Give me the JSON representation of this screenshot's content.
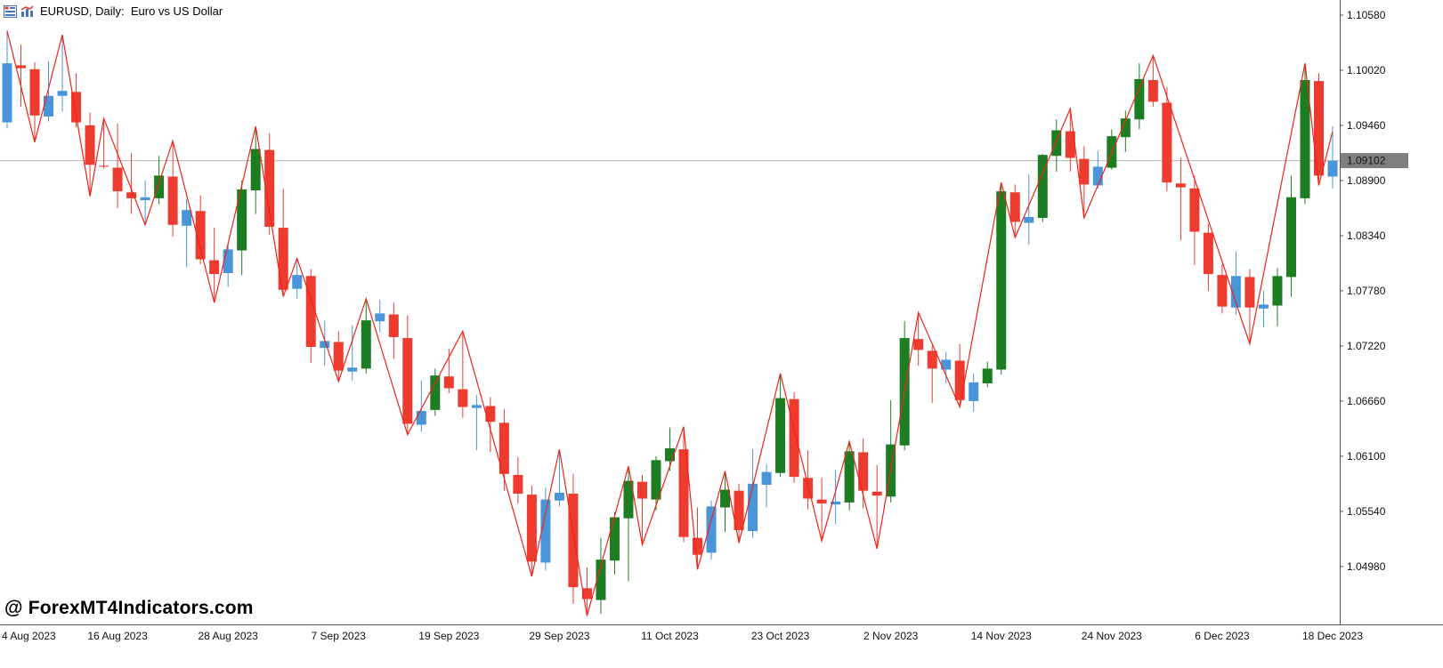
{
  "header": {
    "title": "EURUSD, Daily:  Euro vs US Dollar",
    "icons": [
      "symbols-list-icon",
      "chart-shortcut-icon"
    ]
  },
  "watermark": {
    "text": "@ ForexMT4Indicators.com"
  },
  "colors": {
    "bear_red": "#ee3b2f",
    "bull_blue": "#4a94d8",
    "bull_green": "#1c7d22",
    "zigzag": "#f02419",
    "bid_line": "#b4b4b4",
    "badge_bg": "#7f7f7f",
    "badge_text": "#ffffff",
    "axis_line": "#555555",
    "axis_text": "#111111",
    "background": "#ffffff"
  },
  "chart_data": {
    "type": "candlestick",
    "symbol": "EURUSD",
    "timeframe": "Daily",
    "title": "EURUSD, Daily: Euro vs US Dollar",
    "bid": 1.09102,
    "bid_label": "1.09102",
    "grid": false,
    "ylim": [
      1.04392,
      1.10733
    ],
    "yticks": [
      "1.10580",
      "1.10020",
      "1.09460",
      "1.08900",
      "1.08340",
      "1.07780",
      "1.07220",
      "1.06660",
      "1.06100",
      "1.05540",
      "1.04980"
    ],
    "xticks": [
      {
        "i": 0,
        "label": "4 Aug 2023"
      },
      {
        "i": 8,
        "label": "16 Aug 2023"
      },
      {
        "i": 16,
        "label": "28 Aug 2023"
      },
      {
        "i": 24,
        "label": "7 Sep 2023"
      },
      {
        "i": 32,
        "label": "19 Sep 2023"
      },
      {
        "i": 40,
        "label": "29 Sep 2023"
      },
      {
        "i": 48,
        "label": "11 Oct 2023"
      },
      {
        "i": 56,
        "label": "23 Oct 2023"
      },
      {
        "i": 64,
        "label": "2 Nov 2023"
      },
      {
        "i": 72,
        "label": "14 Nov 2023"
      },
      {
        "i": 80,
        "label": "24 Nov 2023"
      },
      {
        "i": 88,
        "label": "6 Dec 2023"
      },
      {
        "i": 96,
        "label": "18 Dec 2023"
      }
    ],
    "candles": [
      [
        1.0949,
        1.1042,
        1.0943,
        1.1009,
        "b"
      ],
      [
        1.1007,
        1.1028,
        1.0965,
        1.1004,
        "r"
      ],
      [
        1.1003,
        1.101,
        1.0929,
        1.0956,
        "r"
      ],
      [
        1.0955,
        1.1011,
        1.095,
        1.0976,
        "b"
      ],
      [
        1.0976,
        1.1038,
        1.096,
        1.0981,
        "b"
      ],
      [
        1.098,
        1.0999,
        1.0944,
        1.0949,
        "r"
      ],
      [
        1.0946,
        1.0959,
        1.0874,
        1.0906,
        "r"
      ],
      [
        1.0905,
        1.0953,
        1.0902,
        1.0904,
        "r"
      ],
      [
        1.0903,
        1.0948,
        1.0862,
        1.0879,
        "r"
      ],
      [
        1.0878,
        1.0918,
        1.0856,
        1.0872,
        "r"
      ],
      [
        1.087,
        1.089,
        1.0845,
        1.0873,
        "b"
      ],
      [
        1.0872,
        1.0915,
        1.0866,
        1.0895,
        "g"
      ],
      [
        1.0894,
        1.093,
        1.0833,
        1.0845,
        "r"
      ],
      [
        1.0844,
        1.0871,
        1.0802,
        1.086,
        "b"
      ],
      [
        1.0859,
        1.0875,
        1.0805,
        1.081,
        "r"
      ],
      [
        1.0809,
        1.0842,
        1.0766,
        1.0795,
        "r"
      ],
      [
        1.0796,
        1.0827,
        1.0782,
        1.082,
        "b"
      ],
      [
        1.0819,
        1.089,
        1.0794,
        1.0881,
        "g"
      ],
      [
        1.088,
        1.0945,
        1.0856,
        1.0922,
        "g"
      ],
      [
        1.0921,
        1.0938,
        1.0835,
        1.0843,
        "r"
      ],
      [
        1.0842,
        1.0882,
        1.0772,
        1.0779,
        "r"
      ],
      [
        1.078,
        1.0811,
        1.077,
        1.0794,
        "b"
      ],
      [
        1.0793,
        1.08,
        1.0705,
        1.0721,
        "r"
      ],
      [
        1.072,
        1.0748,
        1.0702,
        1.0727,
        "b"
      ],
      [
        1.0726,
        1.0737,
        1.0686,
        1.0697,
        "r"
      ],
      [
        1.0696,
        1.0743,
        1.0687,
        1.07,
        "b"
      ],
      [
        1.0699,
        1.077,
        1.0694,
        1.0748,
        "g"
      ],
      [
        1.0747,
        1.0769,
        1.0736,
        1.0755,
        "b"
      ],
      [
        1.0754,
        1.0766,
        1.0709,
        1.0731,
        "r"
      ],
      [
        1.073,
        1.0753,
        1.0632,
        1.0643,
        "r"
      ],
      [
        1.0642,
        1.0687,
        1.0635,
        1.0656,
        "b"
      ],
      [
        1.0657,
        1.0699,
        1.0651,
        1.0692,
        "g"
      ],
      [
        1.0691,
        1.0719,
        1.0674,
        1.0679,
        "r"
      ],
      [
        1.0678,
        1.0737,
        1.0649,
        1.066,
        "r"
      ],
      [
        1.0659,
        1.0672,
        1.0616,
        1.0662,
        "b"
      ],
      [
        1.0661,
        1.067,
        1.0614,
        1.0645,
        "r"
      ],
      [
        1.0644,
        1.0658,
        1.0575,
        1.0592,
        "r"
      ],
      [
        1.0591,
        1.0609,
        1.0562,
        1.0572,
        "r"
      ],
      [
        1.0571,
        1.058,
        1.0488,
        1.0503,
        "r"
      ],
      [
        1.0502,
        1.0578,
        1.0494,
        1.0566,
        "b"
      ],
      [
        1.0565,
        1.0617,
        1.0559,
        1.0573,
        "b"
      ],
      [
        1.0572,
        1.0592,
        1.046,
        1.0477,
        "r"
      ],
      [
        1.0476,
        1.0497,
        1.0448,
        1.0465,
        "r"
      ],
      [
        1.0464,
        1.0527,
        1.045,
        1.0505,
        "g"
      ],
      [
        1.0504,
        1.0553,
        1.049,
        1.0548,
        "g"
      ],
      [
        1.0547,
        1.06,
        1.0483,
        1.0585,
        "g"
      ],
      [
        1.0584,
        1.0591,
        1.052,
        1.0567,
        "r"
      ],
      [
        1.0566,
        1.061,
        1.0555,
        1.0606,
        "g"
      ],
      [
        1.0605,
        1.0639,
        1.0595,
        1.0618,
        "g"
      ],
      [
        1.0617,
        1.064,
        1.0523,
        1.0528,
        "r"
      ],
      [
        1.0527,
        1.0558,
        1.0495,
        1.051,
        "r"
      ],
      [
        1.0512,
        1.0565,
        1.0505,
        1.0559,
        "b"
      ],
      [
        1.0558,
        1.0595,
        1.0533,
        1.0576,
        "g"
      ],
      [
        1.0575,
        1.0582,
        1.0522,
        1.0535,
        "r"
      ],
      [
        1.0534,
        1.0617,
        1.0527,
        1.0582,
        "b"
      ],
      [
        1.0581,
        1.0602,
        1.0558,
        1.0594,
        "b"
      ],
      [
        1.0593,
        1.0694,
        1.0589,
        1.0669,
        "g"
      ],
      [
        1.0668,
        1.0675,
        1.0583,
        1.0589,
        "r"
      ],
      [
        1.0588,
        1.0616,
        1.0556,
        1.0567,
        "r"
      ],
      [
        1.0566,
        1.0588,
        1.0524,
        1.0562,
        "r"
      ],
      [
        1.0561,
        1.0596,
        1.0541,
        1.0564,
        "b"
      ],
      [
        1.0563,
        1.0625,
        1.0555,
        1.0615,
        "g"
      ],
      [
        1.0614,
        1.0628,
        1.0557,
        1.0575,
        "r"
      ],
      [
        1.0574,
        1.0601,
        1.0516,
        1.057,
        "r"
      ],
      [
        1.0569,
        1.0667,
        1.0563,
        1.0622,
        "g"
      ],
      [
        1.0621,
        1.0747,
        1.0616,
        1.073,
        "g"
      ],
      [
        1.0729,
        1.0756,
        1.0702,
        1.0718,
        "r"
      ],
      [
        1.0717,
        1.0722,
        1.0664,
        1.0699,
        "r"
      ],
      [
        1.0698,
        1.0716,
        1.0684,
        1.0708,
        "b"
      ],
      [
        1.0707,
        1.0724,
        1.066,
        1.0667,
        "r"
      ],
      [
        1.0666,
        1.0694,
        1.0655,
        1.0685,
        "b"
      ],
      [
        1.0684,
        1.0706,
        1.068,
        1.0699,
        "g"
      ],
      [
        1.0698,
        1.0888,
        1.0693,
        1.0879,
        "g"
      ],
      [
        1.0878,
        1.0886,
        1.0832,
        1.0848,
        "r"
      ],
      [
        1.0847,
        1.0896,
        1.0825,
        1.0853,
        "b"
      ],
      [
        1.0852,
        1.0917,
        1.0848,
        1.0916,
        "g"
      ],
      [
        1.0915,
        1.0952,
        1.0899,
        1.0941,
        "g"
      ],
      [
        1.094,
        1.0963,
        1.0899,
        1.0913,
        "r"
      ],
      [
        1.0912,
        1.0925,
        1.0852,
        1.0886,
        "r"
      ],
      [
        1.0885,
        1.092,
        1.0882,
        1.0904,
        "b"
      ],
      [
        1.0903,
        1.0942,
        1.0901,
        1.0935,
        "g"
      ],
      [
        1.0934,
        1.0961,
        1.0919,
        1.0953,
        "g"
      ],
      [
        1.0952,
        1.1009,
        1.0942,
        1.0993,
        "g"
      ],
      [
        1.0992,
        1.1017,
        1.0965,
        1.097,
        "r"
      ],
      [
        1.0969,
        1.0985,
        1.0879,
        1.0888,
        "r"
      ],
      [
        1.0887,
        1.0913,
        1.0829,
        1.0883,
        "r"
      ],
      [
        1.0882,
        1.0895,
        1.0804,
        1.0838,
        "r"
      ],
      [
        1.0837,
        1.0846,
        1.0778,
        1.0795,
        "r"
      ],
      [
        1.0794,
        1.0805,
        1.0755,
        1.0762,
        "r"
      ],
      [
        1.0761,
        1.0818,
        1.0754,
        1.0793,
        "b"
      ],
      [
        1.0792,
        1.08,
        1.0724,
        1.0761,
        "r"
      ],
      [
        1.076,
        1.0778,
        1.0741,
        1.0764,
        "b"
      ],
      [
        1.0763,
        1.0801,
        1.0742,
        1.0793,
        "g"
      ],
      [
        1.0792,
        1.0895,
        1.0772,
        1.0873,
        "g"
      ],
      [
        1.0872,
        1.1009,
        1.0866,
        1.0992,
        "g"
      ],
      [
        1.0991,
        1.0999,
        1.0885,
        1.0895,
        "r"
      ],
      [
        1.0894,
        1.0945,
        1.0882,
        1.091,
        "b"
      ]
    ],
    "zigzag": [
      [
        0,
        1.1042
      ],
      [
        2,
        1.0929
      ],
      [
        4,
        1.1038
      ],
      [
        6,
        1.0874
      ],
      [
        7,
        1.0953
      ],
      [
        10,
        1.0845
      ],
      [
        12,
        1.093
      ],
      [
        15,
        1.0766
      ],
      [
        18,
        1.0945
      ],
      [
        20,
        1.0772
      ],
      [
        21,
        1.0811
      ],
      [
        24,
        1.0686
      ],
      [
        26,
        1.077
      ],
      [
        29,
        1.0632
      ],
      [
        33,
        1.0737
      ],
      [
        38,
        1.0488
      ],
      [
        40,
        1.0617
      ],
      [
        42,
        1.0448
      ],
      [
        45,
        1.06
      ],
      [
        46,
        1.052
      ],
      [
        49,
        1.064
      ],
      [
        50,
        1.0495
      ],
      [
        52,
        1.0595
      ],
      [
        53,
        1.0522
      ],
      [
        56,
        1.0694
      ],
      [
        59,
        1.0524
      ],
      [
        61,
        1.0625
      ],
      [
        63,
        1.0516
      ],
      [
        66,
        1.0756
      ],
      [
        69,
        1.066
      ],
      [
        72,
        1.0888
      ],
      [
        73,
        1.0832
      ],
      [
        77,
        1.0963
      ],
      [
        78,
        1.0852
      ],
      [
        83,
        1.1017
      ],
      [
        90,
        1.0724
      ],
      [
        94,
        1.1009
      ],
      [
        95,
        1.0885
      ],
      [
        96,
        1.094
      ]
    ]
  }
}
